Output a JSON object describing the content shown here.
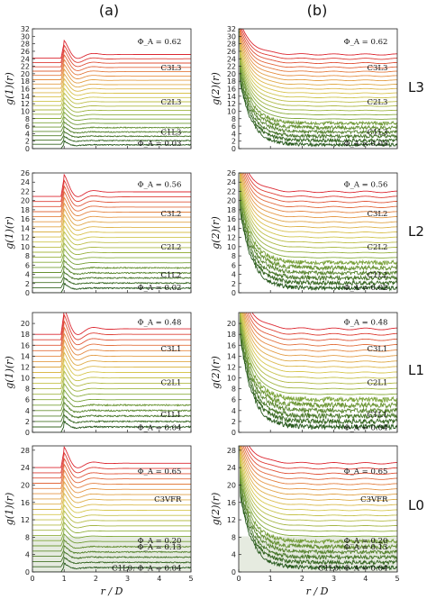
{
  "figure": {
    "column_labels": [
      "(a)",
      "(b)"
    ],
    "row_labels": [
      "L3",
      "L2",
      "L1",
      "L0"
    ],
    "x_axis_label": "r / D",
    "y_axis_labels": [
      "g(1)(r)",
      "g(2)(r)"
    ]
  },
  "chart_data": [
    {
      "id": "a-L3",
      "type": "line",
      "title": "",
      "xlabel": "r / D",
      "ylabel": "g(1)(r)",
      "xlim": [
        0,
        5
      ],
      "ylim": [
        0,
        32
      ],
      "xticks": [
        0,
        1,
        2,
        3,
        4,
        5
      ],
      "yticks": [
        0,
        2,
        4,
        6,
        8,
        10,
        12,
        14,
        16,
        18,
        20,
        22,
        24,
        26,
        28,
        30,
        32
      ],
      "n_curves": 22,
      "curve_offset_step": 1.15,
      "colormap": "green-yellow-red",
      "annotations": [
        {
          "text": "Φ_A = 0.62",
          "x": 4.7,
          "y": 28.6
        },
        {
          "text": "C3L3",
          "x": 4.7,
          "y": 21.6
        },
        {
          "text": "C2L3",
          "x": 4.7,
          "y": 12.5
        },
        {
          "text": "C1L3",
          "x": 4.7,
          "y": 4.5
        },
        {
          "text": "Φ_A = 0.03",
          "x": 4.7,
          "y": 1.5
        }
      ]
    },
    {
      "id": "b-L3",
      "type": "line",
      "title": "",
      "xlabel": "r / D",
      "ylabel": "g(2)(r)",
      "xlim": [
        0,
        5
      ],
      "ylim": [
        0,
        32
      ],
      "xticks": [
        0,
        1,
        2,
        3,
        4,
        5
      ],
      "yticks": [
        0,
        2,
        4,
        6,
        8,
        10,
        12,
        14,
        16,
        18,
        20,
        22,
        24,
        26,
        28,
        30,
        32
      ],
      "n_curves": 22,
      "curve_offset_step": 1.15,
      "colormap": "green-yellow-red",
      "annotations": [
        {
          "text": "Φ_A = 0.62",
          "x": 4.7,
          "y": 28.6
        },
        {
          "text": "C3L3",
          "x": 4.7,
          "y": 21.6
        },
        {
          "text": "C2L3",
          "x": 4.7,
          "y": 12.5
        },
        {
          "text": "C1L3",
          "x": 4.7,
          "y": 4.5
        },
        {
          "text": "Φ_A = 0.03",
          "x": 4.7,
          "y": 1.5
        }
      ]
    },
    {
      "id": "a-L2",
      "type": "line",
      "title": "",
      "xlabel": "r / D",
      "ylabel": "g(1)(r)",
      "xlim": [
        0,
        5
      ],
      "ylim": [
        0,
        26
      ],
      "xticks": [
        0,
        1,
        2,
        3,
        4,
        5
      ],
      "yticks": [
        0,
        2,
        4,
        6,
        8,
        10,
        12,
        14,
        16,
        18,
        20,
        22,
        24,
        26
      ],
      "n_curves": 20,
      "curve_offset_step": 1.1,
      "colormap": "green-yellow-red",
      "annotations": [
        {
          "text": "Φ_A = 0.56",
          "x": 4.7,
          "y": 23.6
        },
        {
          "text": "C3L2",
          "x": 4.7,
          "y": 17.2
        },
        {
          "text": "C2L2",
          "x": 4.7,
          "y": 10.0
        },
        {
          "text": "C1L2",
          "x": 4.7,
          "y": 3.9
        },
        {
          "text": "Φ_A = 0.02",
          "x": 4.7,
          "y": 1.2
        }
      ]
    },
    {
      "id": "b-L2",
      "type": "line",
      "title": "",
      "xlabel": "r / D",
      "ylabel": "g(2)(r)",
      "xlim": [
        0,
        5
      ],
      "ylim": [
        0,
        26
      ],
      "xticks": [
        0,
        1,
        2,
        3,
        4,
        5
      ],
      "yticks": [
        0,
        2,
        4,
        6,
        8,
        10,
        12,
        14,
        16,
        18,
        20,
        22,
        24,
        26
      ],
      "n_curves": 20,
      "curve_offset_step": 1.1,
      "colormap": "green-yellow-red",
      "annotations": [
        {
          "text": "Φ_A = 0.56",
          "x": 4.7,
          "y": 23.6
        },
        {
          "text": "C3L2",
          "x": 4.7,
          "y": 17.2
        },
        {
          "text": "C2L2",
          "x": 4.7,
          "y": 10.0
        },
        {
          "text": "C1L2",
          "x": 4.7,
          "y": 3.9
        },
        {
          "text": "Φ_A = 0.02",
          "x": 4.7,
          "y": 1.2
        }
      ]
    },
    {
      "id": "a-L1",
      "type": "line",
      "title": "",
      "xlabel": "r / D",
      "ylabel": "g(1)(r)",
      "xlim": [
        0,
        5
      ],
      "ylim": [
        0,
        22
      ],
      "xticks": [
        0,
        1,
        2,
        3,
        4,
        5
      ],
      "yticks": [
        0,
        2,
        4,
        6,
        8,
        10,
        12,
        14,
        16,
        18,
        20
      ],
      "n_curves": 19,
      "curve_offset_step": 1.0,
      "colormap": "green-yellow-red",
      "annotations": [
        {
          "text": "Φ_A = 0.48",
          "x": 4.7,
          "y": 20.3
        },
        {
          "text": "C3L1",
          "x": 4.7,
          "y": 15.4
        },
        {
          "text": "C2L1",
          "x": 4.7,
          "y": 9.2
        },
        {
          "text": "C1L1",
          "x": 4.7,
          "y": 3.3
        },
        {
          "text": "Φ_A = 0.04",
          "x": 4.7,
          "y": 0.9
        }
      ]
    },
    {
      "id": "b-L1",
      "type": "line",
      "title": "",
      "xlabel": "r / D",
      "ylabel": "g(2)(r)",
      "xlim": [
        0,
        5
      ],
      "ylim": [
        0,
        22
      ],
      "xticks": [
        0,
        1,
        2,
        3,
        4,
        5
      ],
      "yticks": [
        0,
        2,
        4,
        6,
        8,
        10,
        12,
        14,
        16,
        18,
        20
      ],
      "n_curves": 19,
      "curve_offset_step": 1.0,
      "colormap": "green-yellow-red",
      "annotations": [
        {
          "text": "Φ_A = 0.48",
          "x": 4.7,
          "y": 20.3
        },
        {
          "text": "C3L1",
          "x": 4.7,
          "y": 15.4
        },
        {
          "text": "C2L1",
          "x": 4.7,
          "y": 9.2
        },
        {
          "text": "C1L1",
          "x": 4.7,
          "y": 3.3
        },
        {
          "text": "Φ_A = 0.04",
          "x": 4.7,
          "y": 0.9
        }
      ]
    },
    {
      "id": "a-L0",
      "type": "line",
      "title": "",
      "xlabel": "r / D",
      "ylabel": "g(1)(r)",
      "xlim": [
        0,
        5
      ],
      "ylim": [
        0,
        29
      ],
      "xticks": [
        0,
        1,
        2,
        3,
        4,
        5
      ],
      "yticks": [
        0,
        4,
        8,
        12,
        16,
        20,
        24,
        28
      ],
      "n_curves": 21,
      "curve_offset_step": 1.2,
      "colormap": "green-yellow-red",
      "annotations": [
        {
          "text": "Φ_A = 0.65",
          "x": 4.7,
          "y": 23.2
        },
        {
          "text": "C3VFR",
          "x": 4.7,
          "y": 16.8
        },
        {
          "text": "Φ_A = 0.20",
          "x": 4.7,
          "y": 7.2
        },
        {
          "text": "Φ_A = 0.13",
          "x": 4.7,
          "y": 5.8
        },
        {
          "text": "C1L0: Φ_A = 0.04",
          "x": 4.7,
          "y": 0.9
        }
      ]
    },
    {
      "id": "b-L0",
      "type": "line",
      "title": "",
      "xlabel": "r / D",
      "ylabel": "g(2)(r)",
      "xlim": [
        0,
        5
      ],
      "ylim": [
        0,
        29
      ],
      "xticks": [
        0,
        1,
        2,
        3,
        4,
        5
      ],
      "yticks": [
        0,
        4,
        8,
        12,
        16,
        20,
        24,
        28
      ],
      "n_curves": 21,
      "curve_offset_step": 1.2,
      "colormap": "green-yellow-red",
      "annotations": [
        {
          "text": "Φ_A = 0.65",
          "x": 4.7,
          "y": 23.2
        },
        {
          "text": "C3VFR",
          "x": 4.7,
          "y": 16.8
        },
        {
          "text": "Φ_A = 0.20",
          "x": 4.7,
          "y": 7.2
        },
        {
          "text": "Φ_A = 0.13",
          "x": 4.7,
          "y": 5.8
        },
        {
          "text": "C1L0: Φ_A = 0.04",
          "x": 4.7,
          "y": 0.9
        }
      ]
    }
  ]
}
